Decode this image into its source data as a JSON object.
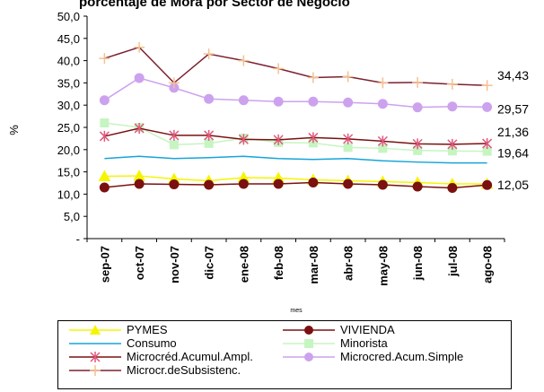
{
  "chart_data": {
    "type": "line",
    "title": "porcentaje de Mora por Sector de Negocio",
    "xlabel": "mes",
    "ylabel": "%",
    "ylim": [
      0,
      50
    ],
    "y_ticks": [
      "-",
      "5,0",
      "10,0",
      "15,0",
      "20,0",
      "25,0",
      "30,0",
      "35,0",
      "40,0",
      "45,0",
      "50,0"
    ],
    "categories": [
      "sep-07",
      "oct-07",
      "nov-07",
      "dic-07",
      "ene-08",
      "feb-08",
      "mar-08",
      "abr-08",
      "may-08",
      "jun-08",
      "jul-08",
      "ago-08"
    ],
    "grid": false,
    "legend_position": "bottom",
    "series": [
      {
        "name": "PYMES",
        "color": "#f5f500",
        "marker": "triangle",
        "values": [
          14.0,
          14.1,
          13.4,
          13.0,
          13.7,
          13.6,
          13.2,
          13.0,
          12.8,
          12.6,
          12.3,
          12.3
        ]
      },
      {
        "name": "VIVIENDA",
        "color": "#7b1010",
        "marker": "circle",
        "values": [
          11.5,
          12.3,
          12.2,
          12.1,
          12.3,
          12.3,
          12.6,
          12.3,
          12.1,
          11.7,
          11.4,
          12.05
        ]
      },
      {
        "name": "Consumo",
        "color": "#16a5d8",
        "marker": "none",
        "values": [
          18.0,
          18.5,
          18.0,
          18.2,
          18.5,
          18.0,
          17.8,
          18.0,
          17.5,
          17.2,
          17.0,
          17.0
        ]
      },
      {
        "name": "Minorista",
        "color": "#c5f5c0",
        "marker": "square",
        "values": [
          26.0,
          25.0,
          21.1,
          21.4,
          22.6,
          21.6,
          21.5,
          20.5,
          20.3,
          19.8,
          19.7,
          19.64
        ]
      },
      {
        "name": "Microcréd.Acumul.Ampl.",
        "color": "#e0587e",
        "marker": "star",
        "values": [
          23.0,
          24.8,
          23.2,
          23.2,
          22.3,
          22.2,
          22.7,
          22.4,
          21.9,
          21.3,
          21.2,
          21.36
        ]
      },
      {
        "name": "Microcred.Acum.Simple",
        "color": "#cca2ee",
        "marker": "circle",
        "values": [
          31.1,
          36.1,
          33.9,
          31.4,
          31.1,
          30.8,
          30.8,
          30.6,
          30.3,
          29.5,
          29.7,
          29.57
        ]
      },
      {
        "name": "Microcr.deSubsistenc.",
        "color": "#f5c090",
        "marker": "plus",
        "values": [
          40.5,
          43.0,
          35.0,
          41.5,
          40.0,
          38.2,
          36.2,
          36.4,
          35.0,
          35.1,
          34.7,
          34.43
        ]
      }
    ],
    "dark_lines": {
      "Microcr.deSubsistenc.": "#7b2030",
      "Microcréd.Acumul.Ampl.": "#7b1010"
    },
    "end_labels": [
      "34,43",
      "29,57",
      "21,36",
      "19,64",
      "12,05"
    ]
  }
}
